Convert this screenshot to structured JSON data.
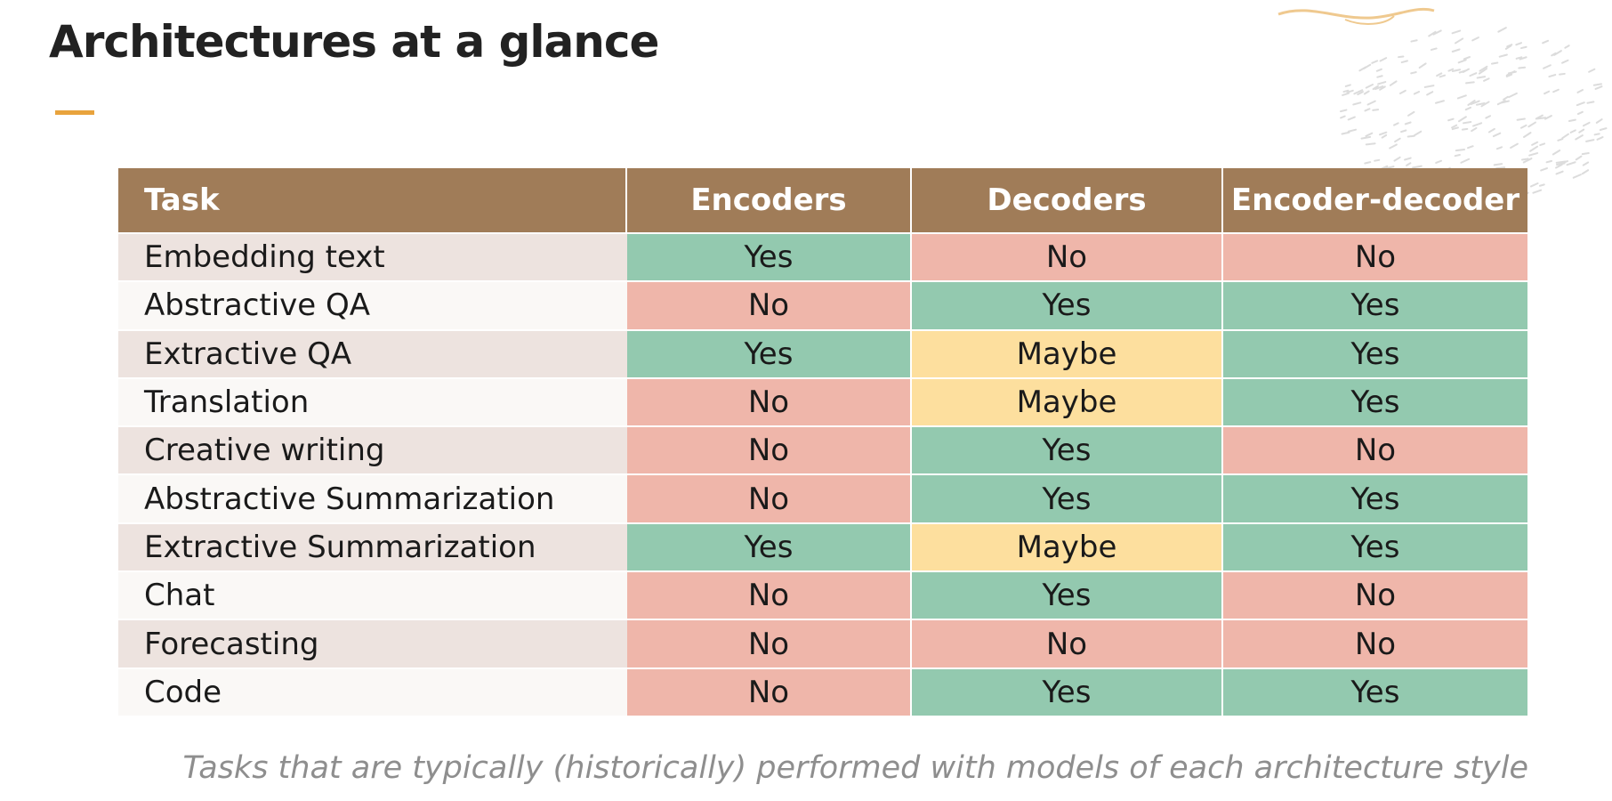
{
  "title": "Architectures at a glance",
  "colors": {
    "accent": "#e8a33d",
    "header_bg": "#a07c58",
    "yes": "#93c9af",
    "no": "#efb6aa",
    "maybe": "#fddf9e"
  },
  "table": {
    "headers": [
      "Task",
      "Encoders",
      "Decoders",
      "Encoder-decoder"
    ],
    "rows": [
      {
        "task": "Embedding text",
        "values": [
          "Yes",
          "No",
          "No"
        ]
      },
      {
        "task": "Abstractive QA",
        "values": [
          "No",
          "Yes",
          "Yes"
        ]
      },
      {
        "task": "Extractive QA",
        "values": [
          "Yes",
          "Maybe",
          "Yes"
        ]
      },
      {
        "task": "Translation",
        "values": [
          "No",
          "Maybe",
          "Yes"
        ]
      },
      {
        "task": "Creative writing",
        "values": [
          "No",
          "Yes",
          "No"
        ]
      },
      {
        "task": "Abstractive Summarization",
        "values": [
          "No",
          "Yes",
          "Yes"
        ]
      },
      {
        "task": "Extractive Summarization",
        "values": [
          "Yes",
          "Maybe",
          "Yes"
        ]
      },
      {
        "task": "Chat",
        "values": [
          "No",
          "Yes",
          "No"
        ]
      },
      {
        "task": "Forecasting",
        "values": [
          "No",
          "No",
          "No"
        ]
      },
      {
        "task": "Code",
        "values": [
          "No",
          "Yes",
          "Yes"
        ]
      }
    ]
  },
  "caption": "Tasks that are typically (historically) performed with models of each architecture style"
}
